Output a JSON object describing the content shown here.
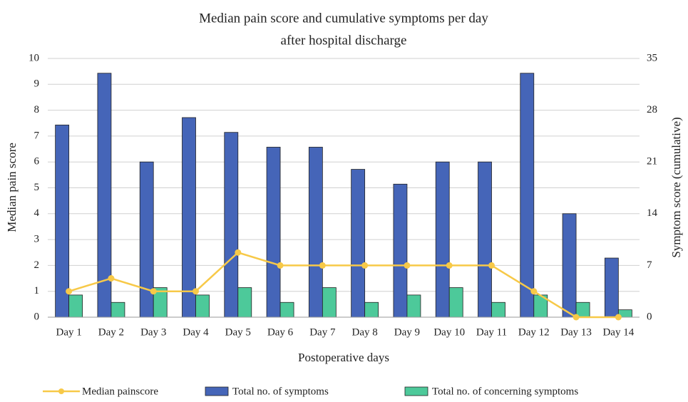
{
  "chart_data": {
    "type": "bar",
    "title": [
      "Median pain score and cumulative symptoms per day",
      "after hospital discharge"
    ],
    "xlabel": "Postoperative days",
    "ylabel": "Median pain score",
    "y2label": "Symptom score (cumulative)",
    "categories": [
      "Day 1",
      "Day 2",
      "Day 3",
      "Day 4",
      "Day 5",
      "Day 6",
      "Day 7",
      "Day 8",
      "Day 9",
      "Day 10",
      "Day 11",
      "Day 12",
      "Day 13",
      "Day 14"
    ],
    "series": [
      {
        "name": "Median painscore",
        "type": "line",
        "color": "#f7c948",
        "values": [
          1,
          1.5,
          1,
          1,
          2.5,
          2,
          2,
          2,
          2,
          2,
          2,
          1,
          0,
          0
        ]
      },
      {
        "name": "Total no. of symptoms",
        "type": "bar",
        "axis": "y2",
        "color": "#4565b8",
        "values": [
          26,
          33,
          21,
          27,
          25,
          23,
          23,
          20,
          18,
          21,
          21,
          33,
          14,
          8
        ]
      },
      {
        "name": "Total no. of concerning symptoms",
        "type": "bar",
        "axis": "y2",
        "color": "#4dc99a",
        "values": [
          3,
          2,
          4,
          3,
          4,
          2,
          4,
          2,
          3,
          4,
          2,
          3,
          2,
          1
        ]
      }
    ],
    "ylim": [
      0,
      10
    ],
    "yticks": [
      0,
      1,
      2,
      3,
      4,
      5,
      6,
      7,
      8,
      9,
      10
    ],
    "y2lim": [
      0,
      35
    ],
    "y2ticks": [
      0,
      7,
      14,
      21,
      28,
      35
    ],
    "grid": true,
    "legend": "bottom"
  }
}
